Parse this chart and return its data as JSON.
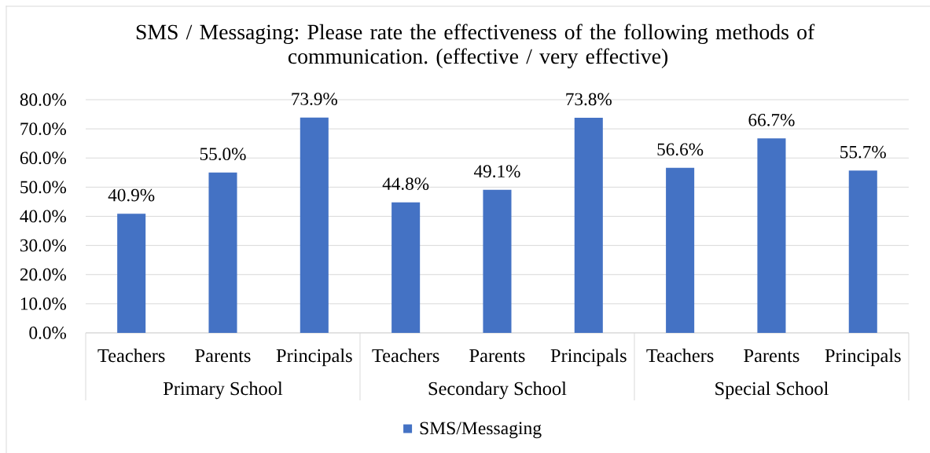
{
  "chart_data": {
    "type": "bar",
    "title": "SMS / Messaging: Please rate the effectiveness of the following methods of communication. (effective / very effective)",
    "categories": [
      "Teachers",
      "Parents",
      "Principals",
      "Teachers",
      "Parents",
      "Principals",
      "Teachers",
      "Parents",
      "Principals"
    ],
    "series": [
      {
        "name": "SMS/Messaging",
        "color": "#4472c4",
        "values": [
          40.9,
          55.0,
          73.9,
          44.8,
          49.1,
          73.8,
          56.6,
          66.7,
          55.7
        ],
        "value_labels": [
          "40.9%",
          "55.0%",
          "73.9%",
          "44.8%",
          "49.1%",
          "73.8%",
          "56.6%",
          "66.7%",
          "55.7%"
        ]
      }
    ],
    "ylim": [
      0,
      80
    ],
    "yticks": [
      {
        "value": 0,
        "label": "0.0%"
      },
      {
        "value": 10,
        "label": "10.0%"
      },
      {
        "value": 20,
        "label": "20.0%"
      },
      {
        "value": 30,
        "label": "30.0%"
      },
      {
        "value": 40,
        "label": "40.0%"
      },
      {
        "value": 50,
        "label": "50.0%"
      },
      {
        "value": 60,
        "label": "60.0%"
      },
      {
        "value": 70,
        "label": "70.0%"
      },
      {
        "value": 80,
        "label": "80.0%"
      }
    ],
    "grid": "y",
    "legend": "bottom",
    "annotations": [
      "Primary School",
      "Secondary School",
      "Special School"
    ]
  }
}
